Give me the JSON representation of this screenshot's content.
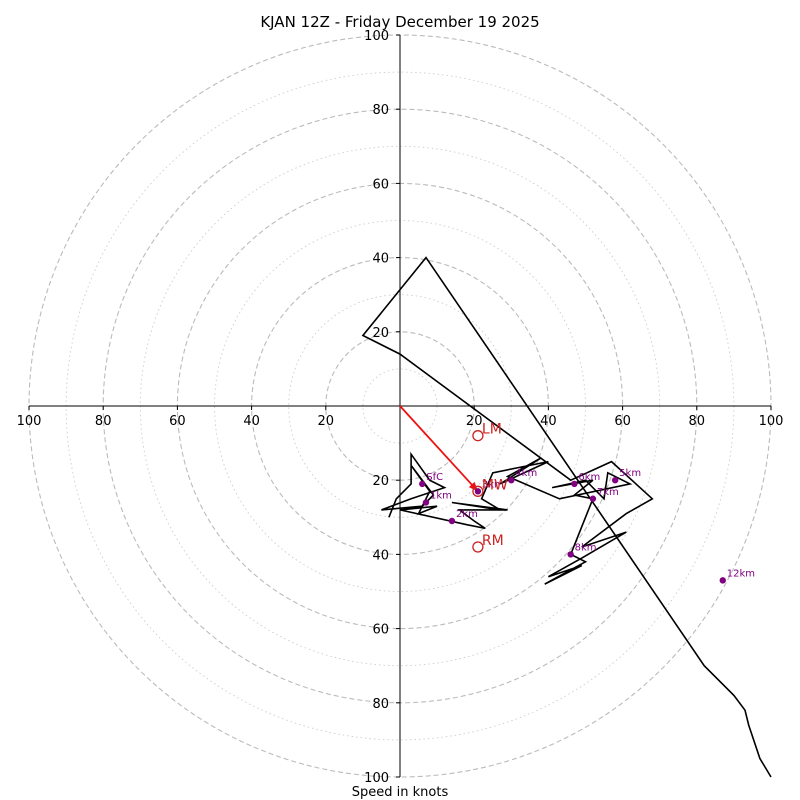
{
  "chart_data": {
    "type": "hodograph",
    "title": "KJAN 12Z - Friday December 19 2025",
    "xlabel": "Speed in knots",
    "range": [
      -100,
      100
    ],
    "ring_spacing": 20,
    "ticks": [
      {
        "value": -100,
        "label": "100"
      },
      {
        "value": -80,
        "label": "80"
      },
      {
        "value": -60,
        "label": "60"
      },
      {
        "value": -40,
        "label": "40"
      },
      {
        "value": -20,
        "label": "20"
      },
      {
        "value": 20,
        "label": "20"
      },
      {
        "value": 40,
        "label": "40"
      },
      {
        "value": 60,
        "label": "60"
      },
      {
        "value": 80,
        "label": "80"
      },
      {
        "value": 100,
        "label": "100"
      }
    ],
    "colors": {
      "trace": "#000000",
      "height_marker": "#800080",
      "storm_motion": "#cc2222",
      "mean_wind_vector": "#ee1111",
      "ring_major": "#bbbbbb",
      "ring_minor": "#cccccc"
    },
    "trace": [
      [
        100,
        -100
      ],
      [
        97,
        -95
      ],
      [
        94,
        -86
      ],
      [
        93,
        -82
      ],
      [
        90,
        -78
      ],
      [
        82,
        -70
      ],
      [
        7,
        40
      ],
      [
        -10,
        19
      ],
      [
        0,
        14
      ],
      [
        46,
        -20
      ],
      [
        57,
        -15
      ],
      [
        68,
        -25
      ],
      [
        61,
        -29
      ],
      [
        49,
        -38
      ],
      [
        61,
        -34
      ],
      [
        49,
        -41
      ],
      [
        40,
        -46
      ],
      [
        49,
        -43
      ],
      [
        39,
        -48
      ],
      [
        50,
        -42
      ],
      [
        46,
        -40
      ],
      [
        52,
        -25
      ],
      [
        47,
        -24
      ],
      [
        52,
        -20
      ],
      [
        41,
        -22
      ],
      [
        50,
        -20
      ],
      [
        55,
        -25
      ],
      [
        56,
        -18
      ],
      [
        62,
        -21
      ],
      [
        43,
        -25
      ],
      [
        29,
        -19
      ],
      [
        38,
        -14
      ],
      [
        27,
        -21
      ],
      [
        40,
        -15
      ],
      [
        25,
        -18
      ],
      [
        22,
        -25
      ],
      [
        27,
        -28
      ],
      [
        14,
        -26
      ],
      [
        29,
        -28
      ],
      [
        16,
        -28
      ],
      [
        20,
        -31
      ],
      [
        23,
        -33
      ],
      [
        18,
        -32
      ],
      [
        0,
        -28
      ],
      [
        10,
        -27
      ],
      [
        5,
        -29
      ],
      [
        8,
        -23
      ],
      [
        3,
        -16
      ],
      [
        9,
        -24
      ],
      [
        6,
        -27
      ],
      [
        -5,
        -28
      ],
      [
        3,
        -25
      ],
      [
        12,
        -22
      ],
      [
        8,
        -20
      ],
      [
        3,
        -13
      ],
      [
        3,
        -21
      ],
      [
        -1,
        -25
      ],
      [
        -3,
        -30
      ]
    ],
    "height_markers": [
      {
        "label": "SfC",
        "u": 6,
        "v": -21
      },
      {
        "label": "1km",
        "u": 7,
        "v": -26
      },
      {
        "label": "2km",
        "u": 14,
        "v": -31
      },
      {
        "label": "3km",
        "u": 21,
        "v": -23
      },
      {
        "label": "4km",
        "u": 30,
        "v": -20
      },
      {
        "label": "5km",
        "u": 58,
        "v": -20
      },
      {
        "label": "6km",
        "u": 47,
        "v": -21
      },
      {
        "label": "7km",
        "u": 52,
        "v": -25
      },
      {
        "label": "8km",
        "u": 46,
        "v": -40
      },
      {
        "label": "12km",
        "u": 87,
        "v": -47
      }
    ],
    "storm_motions": [
      {
        "label": "LM",
        "u": 21,
        "v": -8
      },
      {
        "label": "MW",
        "u": 21,
        "v": -23
      },
      {
        "label": "RM",
        "u": 21,
        "v": -38
      }
    ],
    "mean_wind_vector": {
      "from": [
        0,
        0
      ],
      "to": [
        21,
        -23
      ]
    }
  }
}
